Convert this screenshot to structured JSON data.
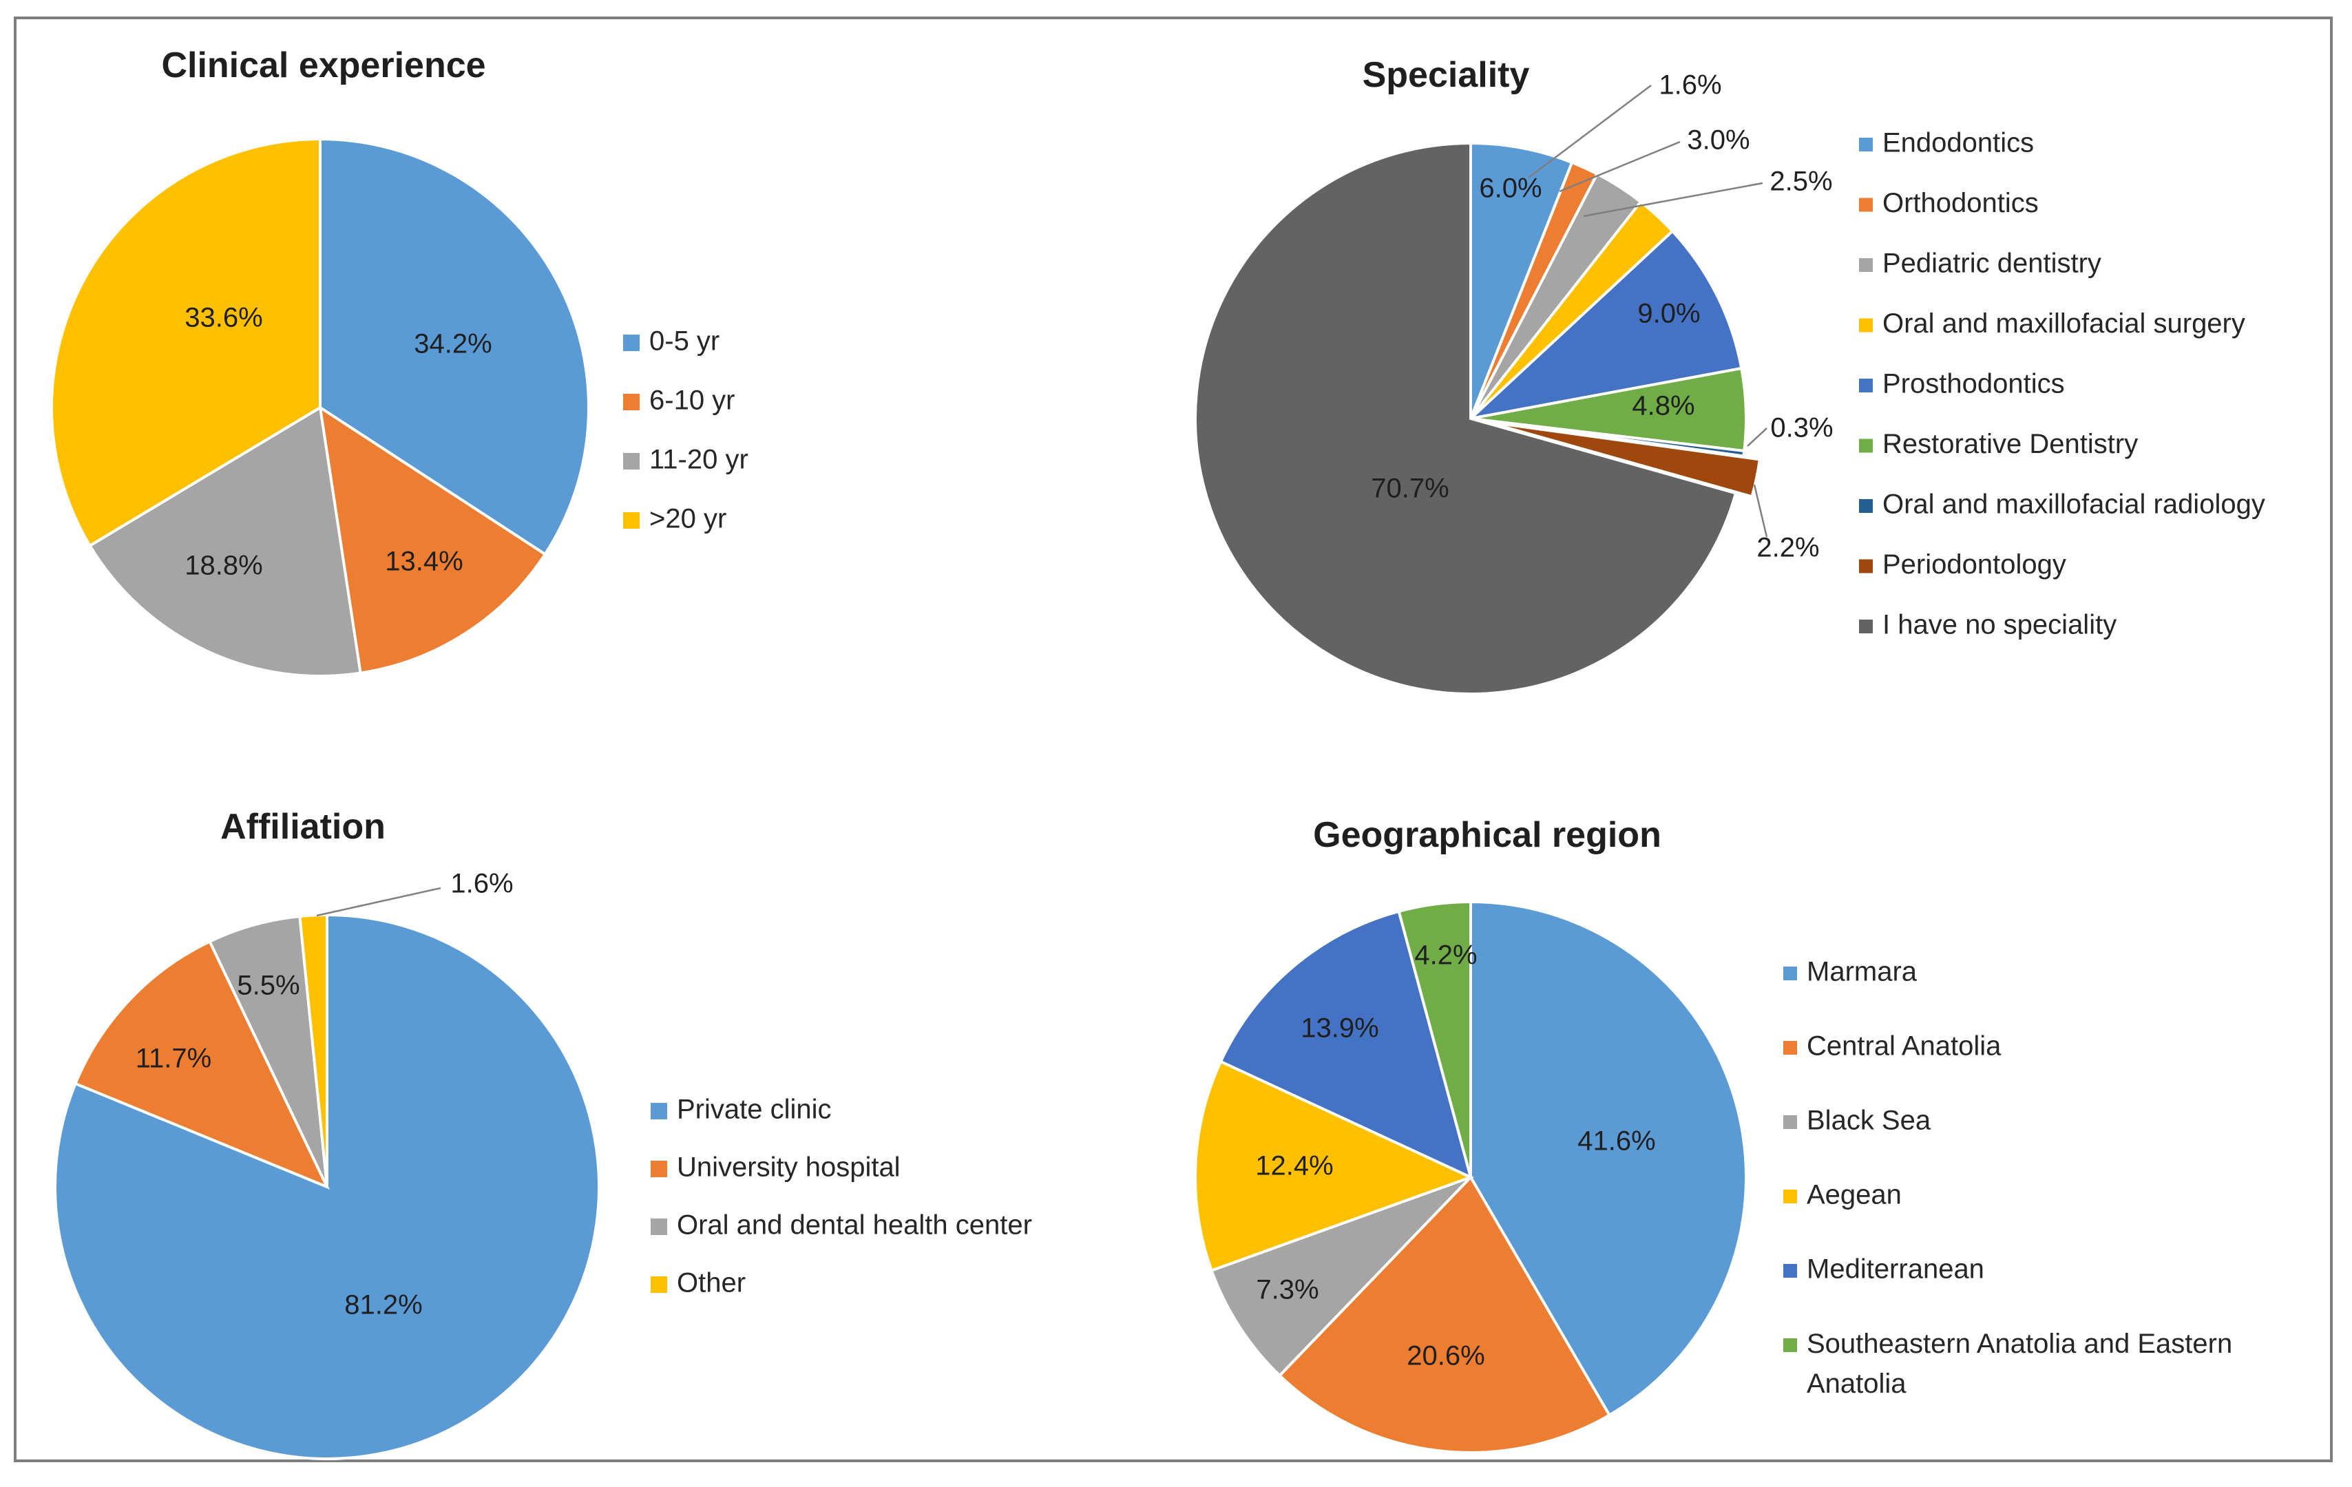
{
  "chart_data": [
    {
      "type": "pie",
      "title": "Clinical experience",
      "slices": [
        {
          "label": "0-5 yr",
          "value": 34.2,
          "text": "34.2%",
          "color": "#5b9bd5"
        },
        {
          "label": "6-10 yr",
          "value": 13.4,
          "text": "13.4%",
          "color": "#ed7d31"
        },
        {
          "label": "11-20 yr",
          "value": 18.8,
          "text": "18.8%",
          "color": "#a5a5a5"
        },
        {
          "label": ">20 yr",
          "value": 33.6,
          "text": "33.6%",
          "color": "#ffc000"
        }
      ],
      "legend_position": "right"
    },
    {
      "type": "pie",
      "title": "Speciality",
      "slices": [
        {
          "label": "Endodontics",
          "value": 6.0,
          "text": "6.0%",
          "color": "#5b9bd5"
        },
        {
          "label": "Orthodontics",
          "value": 1.6,
          "text": "1.6%",
          "color": "#ed7d31"
        },
        {
          "label": "Pediatric dentistry",
          "value": 3.0,
          "text": "3.0%",
          "color": "#a5a5a5"
        },
        {
          "label": "Oral and maxillofacial surgery",
          "value": 2.5,
          "text": "2.5%",
          "color": "#ffc000"
        },
        {
          "label": "Prosthodontics",
          "value": 9.0,
          "text": "9.0%",
          "color": "#4472c4"
        },
        {
          "label": "Restorative Dentistry",
          "value": 4.8,
          "text": "4.8%",
          "color": "#70ad47"
        },
        {
          "label": "Oral and maxillofacial radiology",
          "value": 0.3,
          "text": "0.3%",
          "color": "#255e91"
        },
        {
          "label": "Periodontology",
          "value": 2.2,
          "text": "2.2%",
          "color": "#9e480e"
        },
        {
          "label": "I have no speciality",
          "value": 70.7,
          "text": "70.7%",
          "color": "#636363"
        }
      ],
      "exploded": [
        "Periodontology"
      ],
      "legend_position": "right"
    },
    {
      "type": "pie",
      "title": "Affiliation",
      "slices": [
        {
          "label": "Private clinic",
          "value": 81.2,
          "text": "81.2%",
          "color": "#5b9bd5"
        },
        {
          "label": "University hospital",
          "value": 11.7,
          "text": "11.7%",
          "color": "#ed7d31"
        },
        {
          "label": "Oral and dental health center",
          "value": 5.5,
          "text": "5.5%",
          "color": "#a5a5a5"
        },
        {
          "label": "Other",
          "value": 1.6,
          "text": "1.6%",
          "color": "#ffc000"
        }
      ],
      "legend_position": "right"
    },
    {
      "type": "pie",
      "title": "Geographical region",
      "slices": [
        {
          "label": "Marmara",
          "value": 41.6,
          "text": "41.6%",
          "color": "#5b9bd5"
        },
        {
          "label": "Central Anatolia",
          "value": 20.6,
          "text": "20.6%",
          "color": "#ed7d31"
        },
        {
          "label": "Black Sea",
          "value": 7.3,
          "text": "7.3%",
          "color": "#a5a5a5"
        },
        {
          "label": "Aegean",
          "value": 12.4,
          "text": "12.4%",
          "color": "#ffc000"
        },
        {
          "label": "Mediterranean",
          "value": 13.9,
          "text": "13.9%",
          "color": "#4472c4"
        },
        {
          "label": "Southeastern Anatolia and Eastern Anatolia",
          "value": 4.2,
          "text": "4.2%",
          "color": "#70ad47"
        }
      ],
      "legend_position": "right"
    }
  ]
}
